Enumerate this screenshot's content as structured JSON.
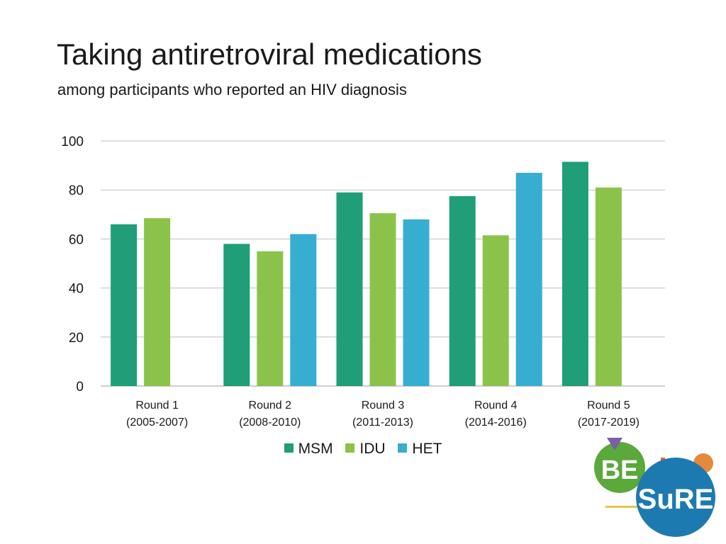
{
  "page": {
    "title": "Taking antiretroviral medications",
    "subtitle": "among participants who reported an HIV diagnosis"
  },
  "colors": {
    "MSM": "#1f9e77",
    "IDU": "#8bc34a",
    "HET": "#35aed1",
    "grid": "#bfbfbf"
  },
  "chart_data": {
    "type": "bar",
    "title": "Taking antiretroviral medications",
    "subtitle": "among participants who reported an HIV diagnosis",
    "categories": [
      [
        "Round 1",
        "(2005-2007)"
      ],
      [
        "Round 2",
        "(2008-2010)"
      ],
      [
        "Round 3",
        "(2011-2013)"
      ],
      [
        "Round 4",
        "(2014-2016)"
      ],
      [
        "Round 5",
        "(2017-2019)"
      ]
    ],
    "series": [
      {
        "name": "MSM",
        "values": [
          66,
          58,
          79,
          77.5,
          91.5
        ]
      },
      {
        "name": "IDU",
        "values": [
          68.5,
          55,
          70.5,
          61.5,
          81
        ]
      },
      {
        "name": "HET",
        "values": [
          null,
          62,
          68,
          87,
          null
        ]
      }
    ],
    "yticks": [
      0,
      20,
      40,
      60,
      80,
      100
    ],
    "ylim": [
      0,
      100
    ],
    "grid": true,
    "legend_position": "bottom",
    "xlabel": "",
    "ylabel": ""
  },
  "logo": {
    "text_top": "BE",
    "text_bottom": "SuRE"
  }
}
